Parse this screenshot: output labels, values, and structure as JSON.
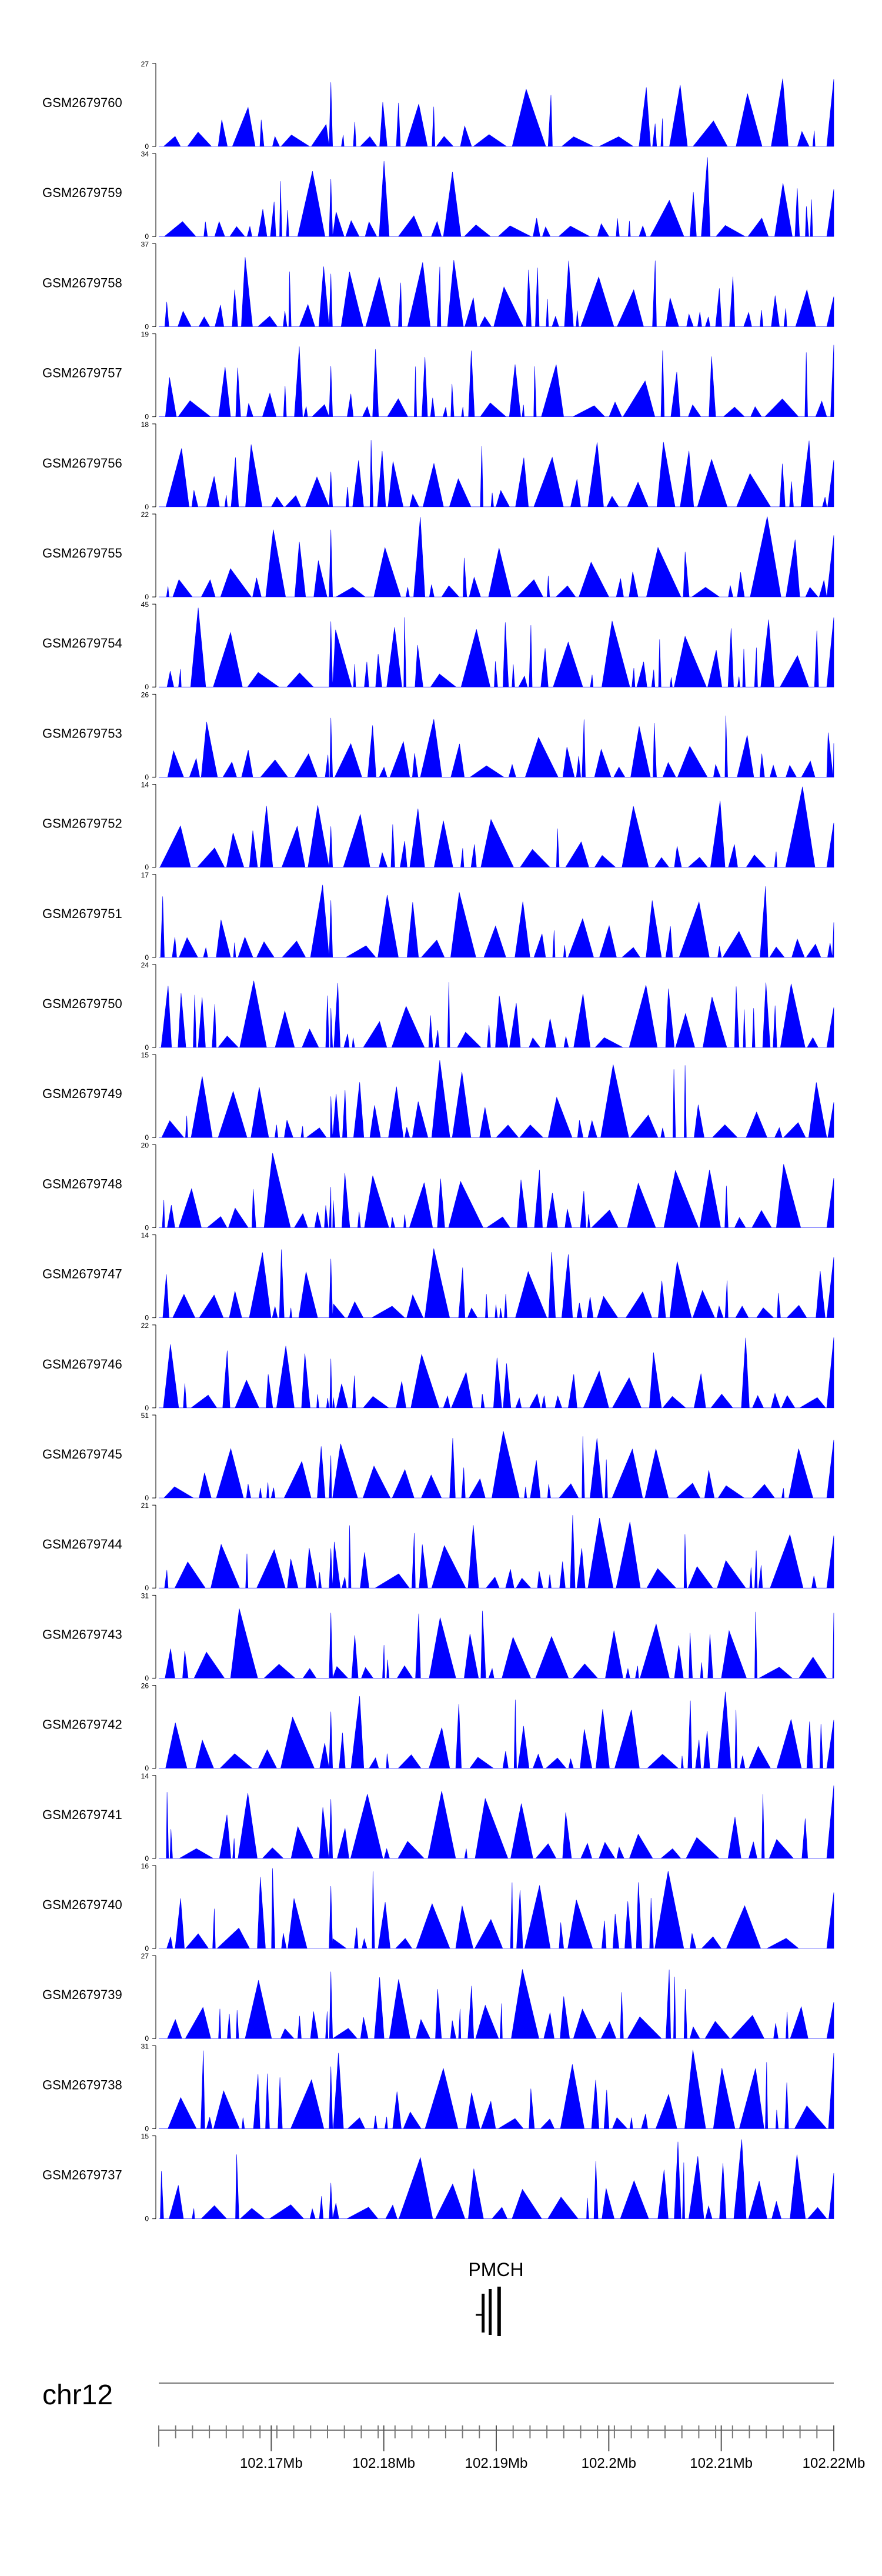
{
  "chart_data": {
    "type": "area",
    "title": "",
    "chromosome": "chr12",
    "xrange_mb": [
      102.16,
      102.22
    ],
    "x_ticks": [
      {
        "value": 102.17,
        "label": "102.17Mb"
      },
      {
        "value": 102.18,
        "label": "102.18Mb"
      },
      {
        "value": 102.19,
        "label": "102.19Mb"
      },
      {
        "value": 102.2,
        "label": "102.2Mb"
      },
      {
        "value": 102.21,
        "label": "102.21Mb"
      },
      {
        "value": 102.22,
        "label": "102.22Mb"
      }
    ],
    "gene": {
      "name": "PMCH",
      "start_mb": 102.1887,
      "end_mb": 102.1902
    },
    "fill_color": "#0000ff",
    "tracks": [
      {
        "name": "GSM2679760",
        "ymax": 27,
        "ymin": 0
      },
      {
        "name": "GSM2679759",
        "ymax": 34,
        "ymin": 0
      },
      {
        "name": "GSM2679758",
        "ymax": 37,
        "ymin": 0
      },
      {
        "name": "GSM2679757",
        "ymax": 19,
        "ymin": 0
      },
      {
        "name": "GSM2679756",
        "ymax": 18,
        "ymin": 0
      },
      {
        "name": "GSM2679755",
        "ymax": 22,
        "ymin": 0
      },
      {
        "name": "GSM2679754",
        "ymax": 45,
        "ymin": 0
      },
      {
        "name": "GSM2679753",
        "ymax": 26,
        "ymin": 0
      },
      {
        "name": "GSM2679752",
        "ymax": 14,
        "ymin": 0
      },
      {
        "name": "GSM2679751",
        "ymax": 17,
        "ymin": 0
      },
      {
        "name": "GSM2679750",
        "ymax": 24,
        "ymin": 0
      },
      {
        "name": "GSM2679749",
        "ymax": 15,
        "ymin": 0
      },
      {
        "name": "GSM2679748",
        "ymax": 20,
        "ymin": 0
      },
      {
        "name": "GSM2679747",
        "ymax": 14,
        "ymin": 0
      },
      {
        "name": "GSM2679746",
        "ymax": 22,
        "ymin": 0
      },
      {
        "name": "GSM2679745",
        "ymax": 51,
        "ymin": 0
      },
      {
        "name": "GSM2679744",
        "ymax": 21,
        "ymin": 0
      },
      {
        "name": "GSM2679743",
        "ymax": 31,
        "ymin": 0
      },
      {
        "name": "GSM2679742",
        "ymax": 26,
        "ymin": 0
      },
      {
        "name": "GSM2679741",
        "ymax": 14,
        "ymin": 0
      },
      {
        "name": "GSM2679740",
        "ymax": 16,
        "ymin": 0
      },
      {
        "name": "GSM2679739",
        "ymax": 27,
        "ymin": 0
      },
      {
        "name": "GSM2679738",
        "ymax": 31,
        "ymin": 0
      },
      {
        "name": "GSM2679737",
        "ymax": 15,
        "ymin": 0
      }
    ]
  }
}
